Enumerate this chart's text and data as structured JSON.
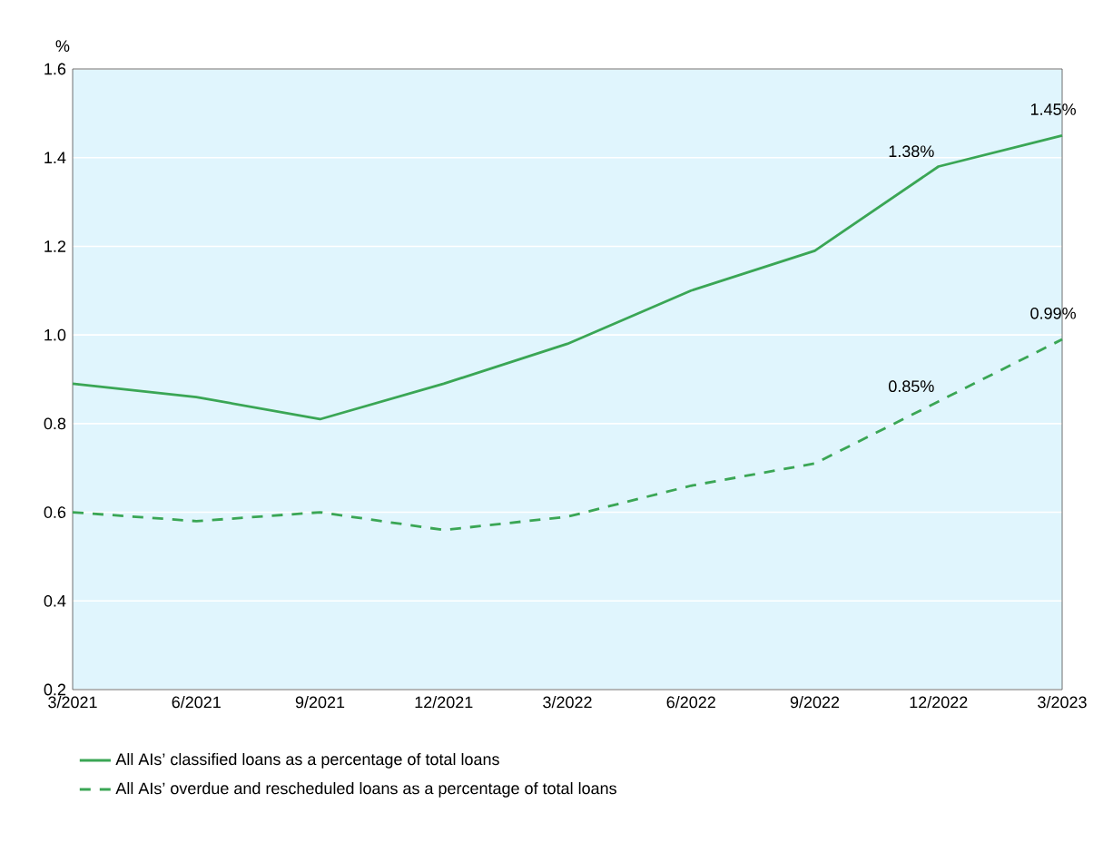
{
  "chart_data": {
    "type": "line",
    "ylabel": "%",
    "categories": [
      "3/2021",
      "6/2021",
      "9/2021",
      "12/2021",
      "3/2022",
      "6/2022",
      "9/2022",
      "12/2022",
      "3/2023"
    ],
    "series": [
      {
        "name": "All AIs’ classified loans as a percentage of total loans",
        "color": "#3aa655",
        "line_style": "solid",
        "values": [
          0.89,
          0.86,
          0.81,
          0.89,
          0.98,
          1.1,
          1.19,
          1.38,
          1.45
        ],
        "value_labels": [
          null,
          null,
          null,
          null,
          null,
          null,
          null,
          "1.38%",
          "1.45%"
        ]
      },
      {
        "name": "All AIs’ overdue and rescheduled loans as a percentage of total loans",
        "color": "#3aa655",
        "line_style": "dashed",
        "values": [
          0.6,
          0.58,
          0.6,
          0.56,
          0.59,
          0.66,
          0.71,
          0.85,
          0.99
        ],
        "value_labels": [
          null,
          null,
          null,
          null,
          null,
          null,
          null,
          "0.85%",
          "0.99%"
        ]
      }
    ],
    "ylim": [
      0.2,
      1.6
    ],
    "yticks": [
      {
        "value": 0.2,
        "label": "0.2"
      },
      {
        "value": 0.4,
        "label": "0.4"
      },
      {
        "value": 0.6,
        "label": "0.6"
      },
      {
        "value": 0.8,
        "label": "0.8"
      },
      {
        "value": 1.0,
        "label": "1.0"
      },
      {
        "value": 1.2,
        "label": "1.2"
      },
      {
        "value": 1.4,
        "label": "1.4"
      },
      {
        "value": 1.6,
        "label": "1.6"
      }
    ],
    "grid": "y",
    "legend": "bottom"
  }
}
